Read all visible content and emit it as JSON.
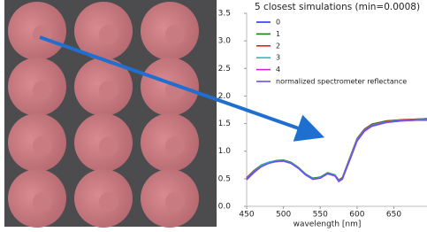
{
  "chart_data": {
    "type": "line",
    "title": "5 closest simulations (min=0.0008)",
    "x_label": "wavelength [nm]",
    "x": [
      450,
      460,
      470,
      480,
      490,
      500,
      510,
      520,
      530,
      540,
      550,
      560,
      570,
      575,
      580,
      590,
      600,
      610,
      620,
      640,
      660,
      680,
      695
    ],
    "series": [
      {
        "name": "0",
        "color": "#3030ff",
        "values": [
          0.5,
          0.63,
          0.73,
          0.79,
          0.82,
          0.83,
          0.79,
          0.7,
          0.58,
          0.5,
          0.52,
          0.6,
          0.56,
          0.47,
          0.5,
          0.85,
          1.2,
          1.38,
          1.47,
          1.53,
          1.56,
          1.57,
          1.58
        ]
      },
      {
        "name": "1",
        "color": "#108010",
        "values": [
          0.52,
          0.65,
          0.75,
          0.8,
          0.83,
          0.84,
          0.8,
          0.71,
          0.59,
          0.51,
          0.53,
          0.61,
          0.57,
          0.48,
          0.52,
          0.88,
          1.23,
          1.4,
          1.49,
          1.55,
          1.57,
          1.58,
          1.59
        ]
      },
      {
        "name": "2",
        "color": "#e02020",
        "values": [
          0.51,
          0.64,
          0.74,
          0.8,
          0.82,
          0.83,
          0.79,
          0.7,
          0.58,
          0.5,
          0.52,
          0.6,
          0.56,
          0.47,
          0.51,
          0.87,
          1.22,
          1.39,
          1.48,
          1.54,
          1.57,
          1.58,
          1.59
        ]
      },
      {
        "name": "3",
        "color": "#20c0c0",
        "values": [
          0.5,
          0.63,
          0.74,
          0.8,
          0.82,
          0.83,
          0.79,
          0.7,
          0.58,
          0.5,
          0.52,
          0.6,
          0.56,
          0.47,
          0.5,
          0.86,
          1.21,
          1.38,
          1.47,
          1.53,
          1.56,
          1.57,
          1.58
        ]
      },
      {
        "name": "4",
        "color": "#d020d0",
        "values": [
          0.49,
          0.62,
          0.72,
          0.78,
          0.81,
          0.82,
          0.78,
          0.69,
          0.57,
          0.49,
          0.51,
          0.59,
          0.55,
          0.46,
          0.49,
          0.84,
          1.19,
          1.37,
          1.46,
          1.52,
          1.55,
          1.56,
          1.57
        ]
      },
      {
        "name": "normalized spectrometer reflectance",
        "color": "#6a4cff",
        "values": [
          0.48,
          0.61,
          0.72,
          0.78,
          0.81,
          0.82,
          0.78,
          0.69,
          0.57,
          0.49,
          0.51,
          0.59,
          0.55,
          0.45,
          0.49,
          0.83,
          1.18,
          1.36,
          1.45,
          1.52,
          1.55,
          1.56,
          1.56
        ]
      }
    ],
    "xlim": [
      450,
      695
    ],
    "xticks": [
      450,
      500,
      550,
      600,
      650
    ],
    "ylim": [
      0,
      3.5
    ],
    "yticks": [
      {
        "value": 0,
        "label": "0.0"
      },
      0.5,
      {
        "value": 1,
        "label": "1.0"
      },
      1.5,
      {
        "value": 2,
        "label": "2.0"
      },
      2.5,
      {
        "value": 3,
        "label": "3.0"
      },
      3.5
    ],
    "legend": "upper-left",
    "grid": false
  }
}
